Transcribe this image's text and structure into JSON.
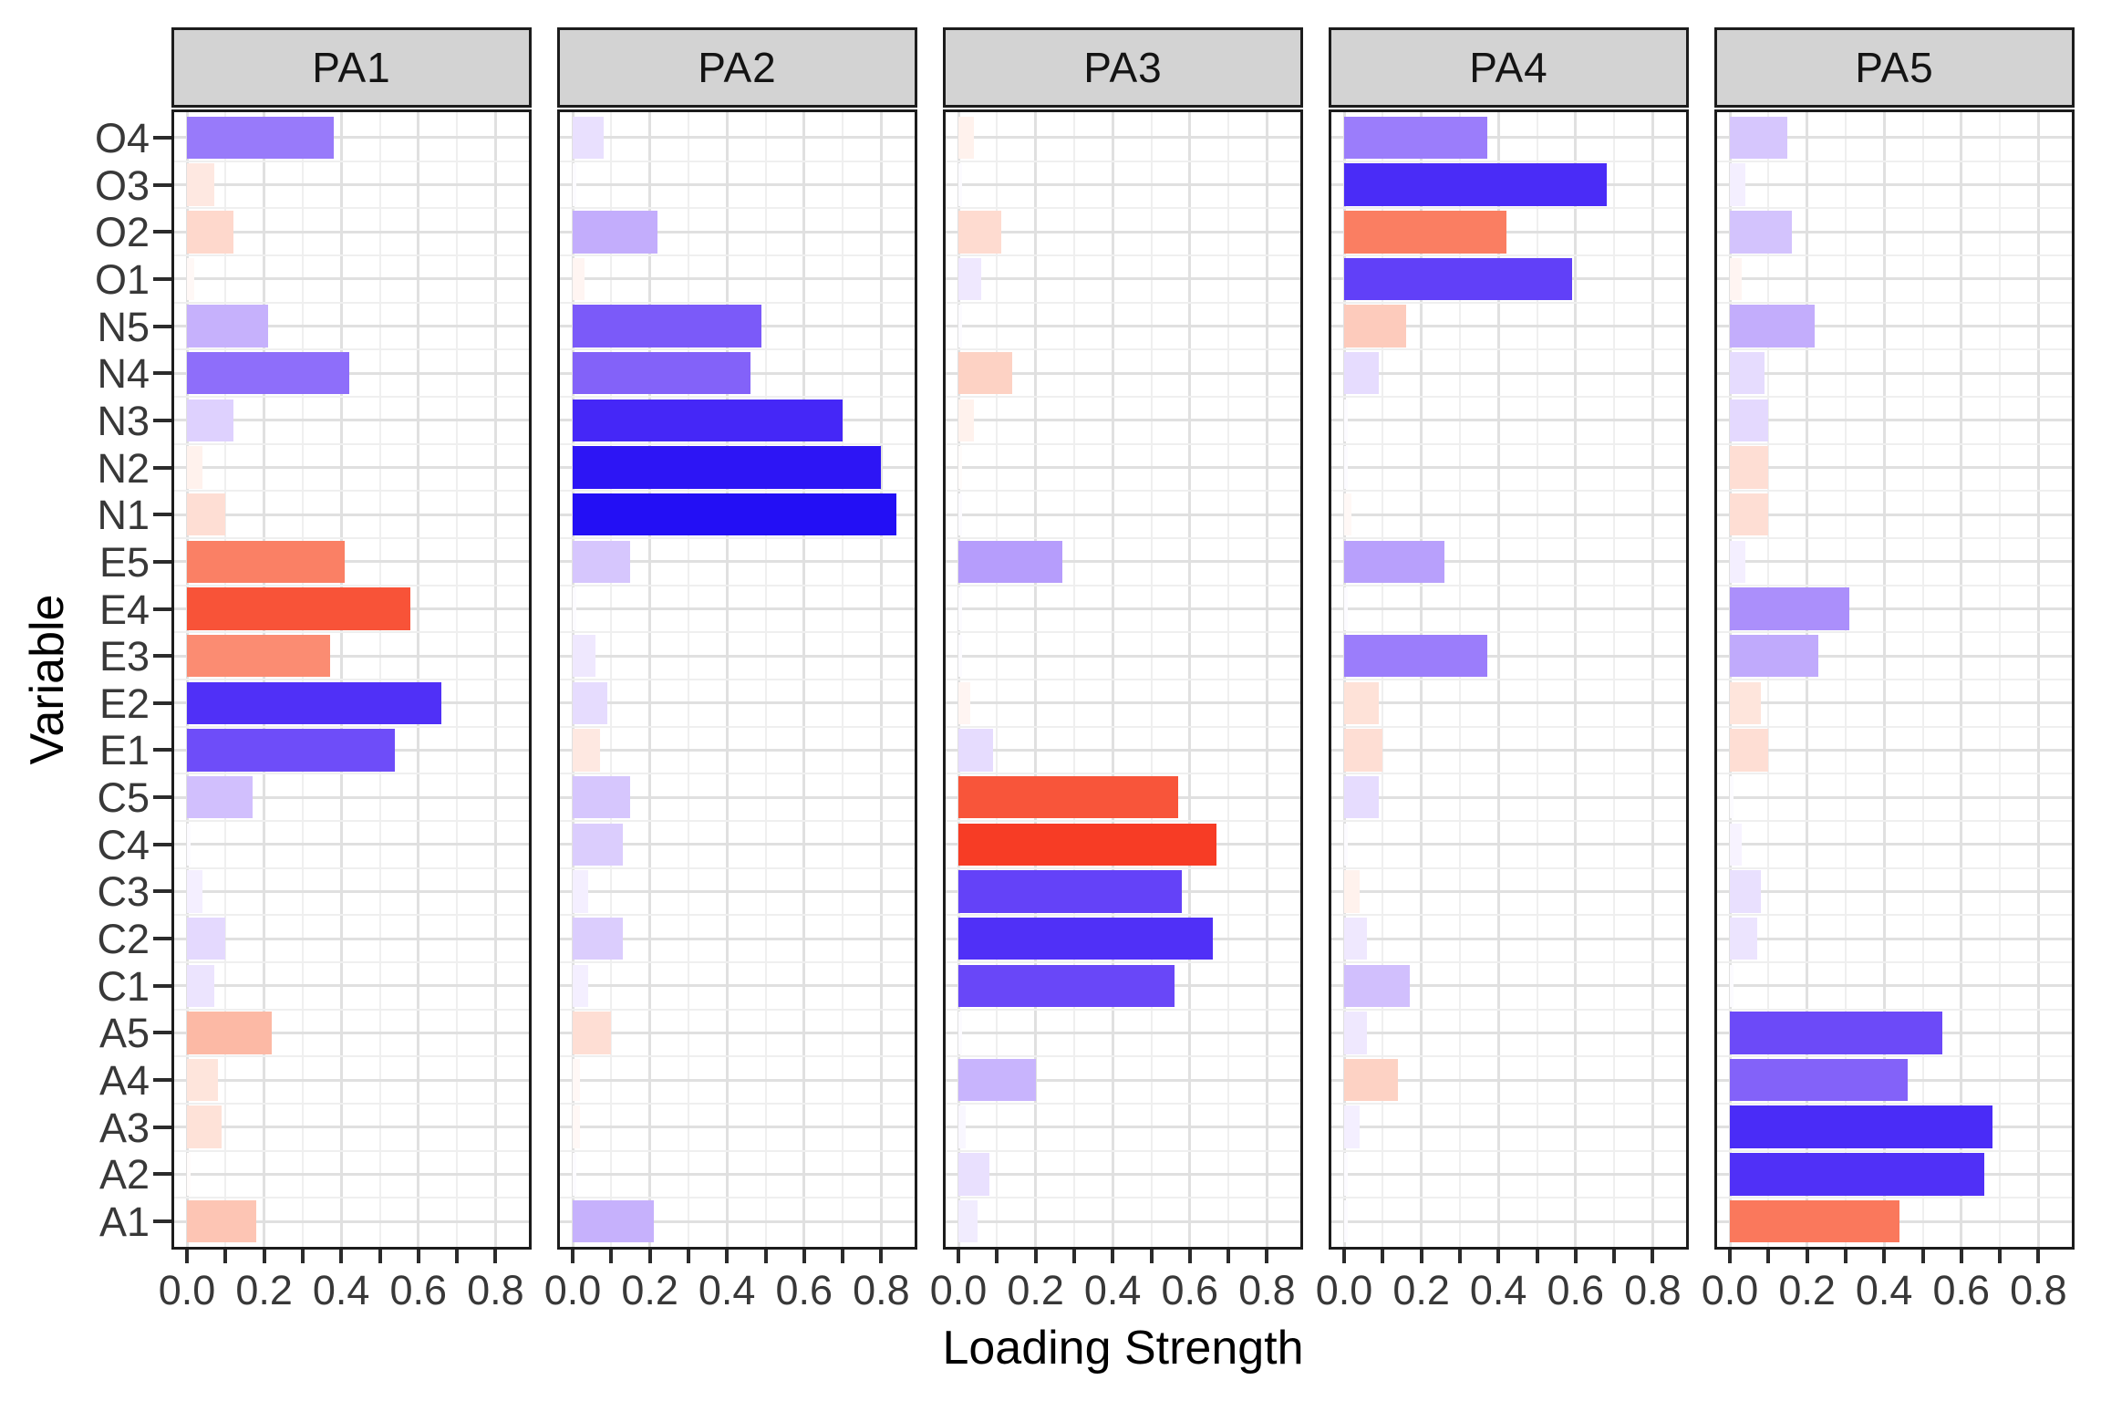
{
  "chart_data": {
    "type": "bar",
    "orientation": "horizontal",
    "facet_layout": "5 columns sharing y axis",
    "xlabel": "Loading Strength",
    "ylabel": "Variable",
    "x_tick_labels": [
      "0.0",
      "0.2",
      "0.4",
      "0.6",
      "0.8"
    ],
    "x_tick_values": [
      0.0,
      0.2,
      0.4,
      0.6,
      0.8
    ],
    "x_minor_tick_values": [
      0.1,
      0.3,
      0.5,
      0.7
    ],
    "xlim": [
      0.0,
      0.85
    ],
    "grid": "on",
    "legend": "none",
    "facets": [
      "PA1",
      "PA2",
      "PA3",
      "PA4",
      "PA5"
    ],
    "categories_top_to_bottom": [
      "O4",
      "O3",
      "O2",
      "O1",
      "N5",
      "N4",
      "N3",
      "N2",
      "N1",
      "E5",
      "E4",
      "E3",
      "E2",
      "E1",
      "C5",
      "C4",
      "C3",
      "C2",
      "C1",
      "A5",
      "A4",
      "A3",
      "A2",
      "A1"
    ],
    "value_encoding": "bar length = |loading|, bar color = signed loading on diverging scale",
    "series": [
      {
        "name": "PA1",
        "loadings": [
          0.38,
          -0.07,
          -0.12,
          -0.02,
          0.21,
          0.42,
          0.12,
          -0.04,
          -0.1,
          -0.41,
          -0.58,
          -0.37,
          0.66,
          0.54,
          0.17,
          0.01,
          0.04,
          0.1,
          0.07,
          -0.22,
          -0.08,
          -0.09,
          -0.01,
          -0.18
        ]
      },
      {
        "name": "PA2",
        "loadings": [
          0.08,
          0.01,
          0.22,
          -0.03,
          0.49,
          0.46,
          0.7,
          0.8,
          0.84,
          0.15,
          0.01,
          0.06,
          0.09,
          -0.07,
          0.15,
          0.13,
          0.04,
          0.13,
          0.04,
          -0.1,
          -0.02,
          -0.02,
          0.01,
          0.21
        ]
      },
      {
        "name": "PA3",
        "loadings": [
          -0.04,
          0.01,
          -0.11,
          0.06,
          0.01,
          -0.14,
          -0.04,
          -0.01,
          0.01,
          0.27,
          0.01,
          0.01,
          -0.03,
          0.09,
          -0.57,
          -0.67,
          0.58,
          0.66,
          0.56,
          0.01,
          0.2,
          0.02,
          0.08,
          0.05
        ]
      },
      {
        "name": "PA4",
        "loadings": [
          0.37,
          0.68,
          -0.42,
          0.59,
          -0.16,
          0.09,
          0.01,
          0.01,
          -0.02,
          0.26,
          0.01,
          0.37,
          -0.09,
          -0.1,
          0.09,
          0.01,
          -0.04,
          0.06,
          0.17,
          0.06,
          -0.14,
          0.04,
          0.01,
          0.01
        ]
      },
      {
        "name": "PA5",
        "loadings": [
          0.15,
          0.04,
          0.16,
          -0.03,
          0.22,
          0.09,
          0.1,
          -0.1,
          -0.1,
          0.04,
          0.31,
          0.23,
          -0.08,
          -0.1,
          0.01,
          0.03,
          0.08,
          0.07,
          0.01,
          0.55,
          0.46,
          0.68,
          0.66,
          -0.44
        ]
      }
    ],
    "colorscale": {
      "negative_end": "#fa3d28",
      "zero": "#ffffff",
      "positive_end": "#0b00fb",
      "description": "red = negative loading, white = zero, blue = positive loading"
    }
  },
  "style": {
    "strip_background": "#d3d3d3",
    "panel_border": "#1c1c1c",
    "grid_major": "#e0e0e0",
    "grid_minor": "#efefef",
    "tick_label_color": "#383838",
    "axis_title_color": "#000000"
  }
}
